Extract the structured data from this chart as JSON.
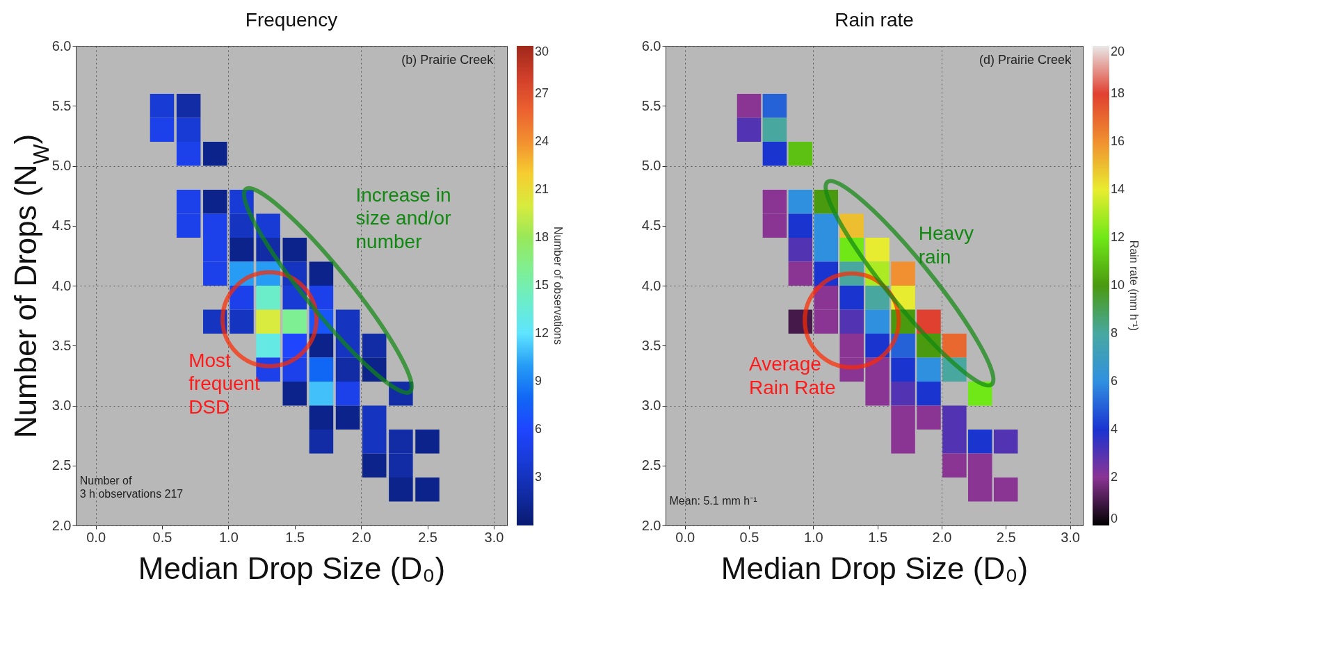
{
  "chart_data": [
    {
      "type": "scatter",
      "title": "Frequency",
      "xlabel": "Median Drop Size (D₀)",
      "ylabel": "Number of Drops (N$_{W}$)",
      "clabel": "Number of observations",
      "marker": "square",
      "grid": true,
      "x": [
        0.5,
        0.7,
        0.5,
        0.7,
        0.7,
        0.9,
        0.7,
        0.9,
        1.1,
        0.7,
        0.9,
        1.1,
        1.3,
        0.9,
        1.1,
        1.3,
        1.5,
        0.9,
        1.1,
        1.3,
        1.5,
        1.7,
        1.1,
        1.3,
        1.5,
        1.7,
        0.9,
        1.1,
        1.3,
        1.5,
        1.7,
        1.9,
        1.3,
        1.5,
        1.7,
        1.9,
        2.1,
        1.3,
        1.5,
        1.7,
        1.9,
        2.1,
        1.5,
        1.7,
        1.9,
        2.3,
        1.7,
        1.9,
        2.1,
        1.7,
        2.1,
        2.3,
        2.5,
        2.1,
        2.3,
        2.3,
        2.5
      ],
      "values": [
        5.5,
        5.5,
        5.3,
        5.3,
        5.1,
        5.1,
        4.7,
        4.7,
        4.7,
        4.5,
        4.5,
        4.5,
        4.5,
        4.3,
        4.3,
        4.3,
        4.3,
        4.1,
        4.1,
        4.1,
        4.1,
        4.1,
        3.9,
        3.9,
        3.9,
        3.9,
        3.7,
        3.7,
        3.7,
        3.7,
        3.7,
        3.7,
        3.5,
        3.5,
        3.5,
        3.5,
        3.5,
        3.3,
        3.3,
        3.3,
        3.3,
        3.3,
        3.1,
        3.1,
        3.1,
        3.1,
        2.9,
        2.9,
        2.9,
        2.7,
        2.7,
        2.7,
        2.7,
        2.5,
        2.5,
        2.3,
        2.3
      ],
      "cvalues": [
        4,
        2,
        5,
        4,
        5,
        1,
        5,
        1,
        4,
        5,
        5,
        3,
        4,
        5,
        1,
        2,
        1,
        5,
        10,
        10,
        3,
        1,
        5,
        14,
        4,
        5,
        3,
        3,
        20,
        16,
        7,
        3,
        13,
        6,
        1,
        3,
        2,
        5,
        5,
        8,
        2,
        1,
        1,
        11,
        5,
        2,
        1,
        1,
        3,
        2,
        3,
        2,
        1,
        1,
        2,
        1,
        1
      ],
      "xlim": [
        -0.15,
        3.1
      ],
      "xticks": [
        {
          "value": 0,
          "label": "0.0"
        },
        0.5,
        {
          "value": 1,
          "label": "1.0"
        },
        1.5,
        {
          "value": 2,
          "label": "2.0"
        },
        2.5,
        {
          "value": 3,
          "label": "3.0"
        }
      ],
      "ylim": [
        2,
        6
      ],
      "yticks": [
        {
          "value": 2,
          "label": "2.0"
        },
        2.5,
        {
          "value": 3,
          "label": "3.0"
        },
        3.5,
        {
          "value": 4,
          "label": "4.0"
        },
        4.5,
        {
          "value": 5,
          "label": "5.0"
        },
        5.5,
        {
          "value": 6,
          "label": "6.0"
        }
      ],
      "clim": [
        0,
        30
      ],
      "cticks": [
        3,
        6,
        9,
        12,
        15,
        18,
        21,
        24,
        27,
        30
      ],
      "annotations": [
        "(b) Prairie Creek",
        "Number of\n3 h observations 217",
        "Most\nfrequent\nDSD",
        "Increase in\nsize and/or\nnumber"
      ]
    },
    {
      "type": "scatter",
      "title": "Rain rate",
      "xlabel": "Median Drop Size (D₀)",
      "clabel": "Rain rate (mm h⁻¹)",
      "marker": "square",
      "grid": true,
      "x": [
        0.5,
        0.7,
        0.5,
        0.7,
        0.7,
        0.9,
        0.7,
        0.9,
        1.1,
        0.7,
        0.9,
        1.1,
        1.3,
        0.9,
        1.1,
        1.3,
        1.5,
        0.9,
        1.1,
        1.3,
        1.5,
        1.7,
        1.1,
        1.3,
        1.5,
        1.7,
        0.9,
        1.1,
        1.3,
        1.5,
        1.7,
        1.9,
        1.3,
        1.5,
        1.7,
        1.9,
        2.1,
        1.3,
        1.5,
        1.7,
        1.9,
        2.1,
        1.5,
        1.7,
        1.9,
        2.3,
        1.7,
        1.9,
        2.1,
        1.7,
        2.1,
        2.3,
        2.5,
        2.1,
        2.3,
        2.3,
        2.5
      ],
      "values": [
        5.5,
        5.5,
        5.3,
        5.3,
        5.1,
        5.1,
        4.7,
        4.7,
        4.7,
        4.5,
        4.5,
        4.5,
        4.5,
        4.3,
        4.3,
        4.3,
        4.3,
        4.1,
        4.1,
        4.1,
        4.1,
        4.1,
        3.9,
        3.9,
        3.9,
        3.9,
        3.7,
        3.7,
        3.7,
        3.7,
        3.7,
        3.7,
        3.5,
        3.5,
        3.5,
        3.5,
        3.5,
        3.3,
        3.3,
        3.3,
        3.3,
        3.3,
        3.1,
        3.1,
        3.1,
        3.1,
        2.9,
        2.9,
        2.9,
        2.7,
        2.7,
        2.7,
        2.7,
        2.5,
        2.5,
        2.3,
        2.3
      ],
      "cvalues": [
        2,
        5,
        3,
        8,
        4,
        11,
        2,
        6,
        10,
        2,
        4,
        6,
        15,
        3,
        6,
        12,
        14,
        2,
        4,
        8,
        13,
        16,
        2,
        4,
        8,
        14,
        1,
        2,
        3,
        6,
        10,
        18,
        2,
        4,
        5,
        10,
        17,
        2,
        2,
        4,
        6,
        8,
        2,
        3,
        4,
        12,
        2,
        2,
        3,
        2,
        3,
        4,
        3,
        2,
        2,
        2,
        2
      ],
      "xlim": [
        -0.15,
        3.1
      ],
      "xticks": [
        {
          "value": 0,
          "label": "0.0"
        },
        0.5,
        {
          "value": 1,
          "label": "1.0"
        },
        1.5,
        {
          "value": 2,
          "label": "2.0"
        },
        2.5,
        {
          "value": 3,
          "label": "3.0"
        }
      ],
      "ylim": [
        2,
        6
      ],
      "yticks": [
        {
          "value": 2,
          "label": "2.0"
        },
        2.5,
        {
          "value": 3,
          "label": "3.0"
        },
        3.5,
        {
          "value": 4,
          "label": "4.0"
        },
        4.5,
        {
          "value": 5,
          "label": "5.0"
        },
        5.5,
        {
          "value": 6,
          "label": "6.0"
        }
      ],
      "clim": [
        0,
        20
      ],
      "cticks": [
        0,
        2,
        4,
        6,
        8,
        10,
        12,
        14,
        16,
        18,
        20
      ],
      "annotations": [
        "(d) Prairie Creek",
        "Mean: 5.1 mm h⁻¹",
        "Average\nRain Rate",
        "Heavy\nrain"
      ]
    }
  ]
}
